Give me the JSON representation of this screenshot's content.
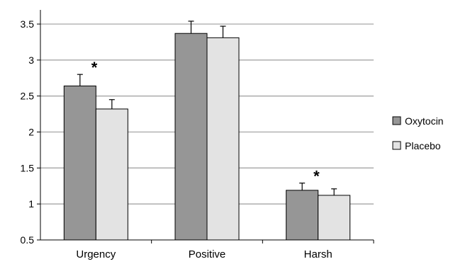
{
  "chart_data": {
    "type": "bar",
    "categories": [
      "Urgency",
      "Positive",
      "Harsh"
    ],
    "series": [
      {
        "name": "Oxytocin",
        "values": [
          2.64,
          3.37,
          1.19
        ],
        "errors": [
          0.16,
          0.17,
          0.1
        ],
        "color": "#969696"
      },
      {
        "name": "Placebo",
        "values": [
          2.32,
          3.31,
          1.12
        ],
        "errors": [
          0.13,
          0.16,
          0.09
        ],
        "color": "#e3e3e3"
      }
    ],
    "ylim": [
      0.5,
      3.5
    ],
    "yticks": [
      "0.5",
      "1",
      "1.5",
      "2",
      "2.5",
      "3",
      "3.5"
    ],
    "grid": true,
    "legend_position": "right",
    "annotations": [
      {
        "category": "Urgency",
        "text": "*"
      },
      {
        "category": "Harsh",
        "text": "*"
      }
    ]
  }
}
